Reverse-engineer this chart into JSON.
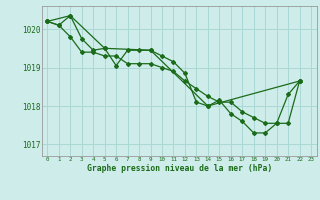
{
  "xlabel": "Graphe pression niveau de la mer (hPa)",
  "ylabel": "",
  "background_color": "#ceecea",
  "grid_color": "#aad8d4",
  "line_color": "#1a6b1a",
  "text_color": "#1a6b1a",
  "xlim": [
    -0.5,
    23.5
  ],
  "ylim": [
    1016.7,
    1020.6
  ],
  "yticks": [
    1017,
    1018,
    1019,
    1020
  ],
  "xticks": [
    0,
    1,
    2,
    3,
    4,
    5,
    6,
    7,
    8,
    9,
    10,
    11,
    12,
    13,
    14,
    15,
    16,
    17,
    18,
    19,
    20,
    21,
    22,
    23
  ],
  "series1": {
    "x": [
      0,
      1,
      2,
      3,
      4,
      5,
      6,
      7,
      8,
      9,
      10,
      11,
      12,
      13,
      14,
      15,
      16,
      17,
      18,
      19,
      20,
      21,
      22
    ],
    "y": [
      1020.2,
      1020.1,
      1020.35,
      1019.75,
      1019.45,
      1019.5,
      1019.05,
      1019.45,
      1019.45,
      1019.45,
      1019.3,
      1019.15,
      1018.85,
      1018.1,
      1018.0,
      1018.15,
      1017.8,
      1017.6,
      1017.3,
      1017.3,
      1017.55,
      1018.3,
      1018.65
    ]
  },
  "series2": {
    "x": [
      0,
      1,
      2,
      3,
      4,
      5,
      6,
      7,
      8,
      9,
      10,
      11,
      12,
      13,
      14,
      15,
      16,
      17,
      18,
      19,
      20,
      21,
      22
    ],
    "y": [
      1020.2,
      1020.1,
      1019.8,
      1019.4,
      1019.4,
      1019.3,
      1019.3,
      1019.1,
      1019.1,
      1019.1,
      1019.0,
      1018.9,
      1018.65,
      1018.45,
      1018.25,
      1018.1,
      1018.1,
      1017.85,
      1017.7,
      1017.55,
      1017.55,
      1017.55,
      1018.65
    ]
  },
  "series3": {
    "x": [
      0,
      2,
      5,
      9,
      14,
      22
    ],
    "y": [
      1020.2,
      1020.35,
      1019.5,
      1019.45,
      1018.0,
      1018.65
    ]
  }
}
